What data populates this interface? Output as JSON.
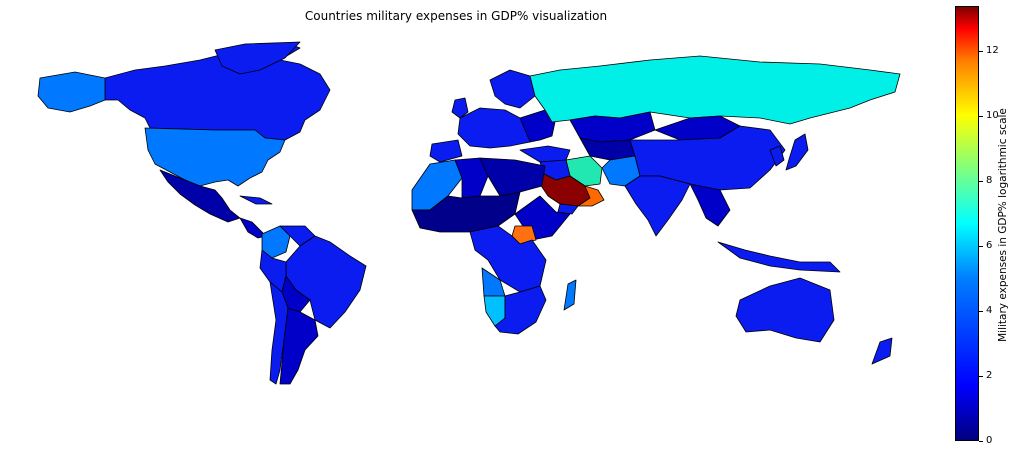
{
  "title": "Countries military expenses in GDP% visualization",
  "colorbar": {
    "label": "Military expenses in GDP% logarithmic scale",
    "ticks": [
      "0",
      "2",
      "4",
      "6",
      "8",
      "10",
      "12"
    ],
    "min": 0,
    "max": 13.3
  },
  "colors": {
    "russia": "#00f0e8",
    "usa": "#0078ff",
    "canada": "#0a1cf0",
    "saudi_arabia": "#8b0000",
    "oman": "#ff6a00",
    "south_sudan": "#ff7010",
    "low": "#0000a8",
    "mid": "#0a1cf0",
    "namibia": "#00c0ff",
    "iran": "#20e8b0"
  }
}
